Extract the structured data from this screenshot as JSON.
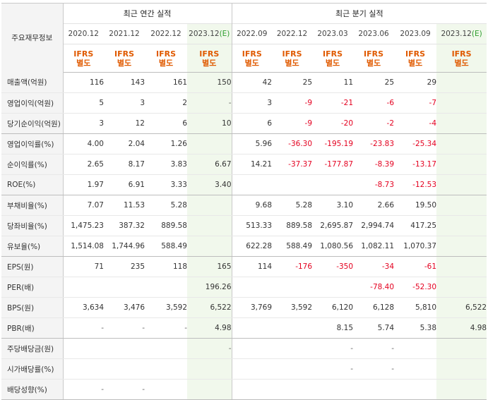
{
  "corner_label": "주요재무정보",
  "groups": {
    "annual": "최근 연간 실적",
    "quarterly": "최근 분기 실적"
  },
  "periods": [
    {
      "label": "2020.12",
      "est": false
    },
    {
      "label": "2021.12",
      "est": false
    },
    {
      "label": "2022.12",
      "est": false
    },
    {
      "label": "2023.12",
      "est": true
    },
    {
      "label": "2022.09",
      "est": false
    },
    {
      "label": "2022.12",
      "est": false
    },
    {
      "label": "2023.03",
      "est": false
    },
    {
      "label": "2023.06",
      "est": false
    },
    {
      "label": "2023.09",
      "est": false
    },
    {
      "label": "2023.12",
      "est": true
    }
  ],
  "est_mark": "(E)",
  "basis": {
    "line1": "IFRS",
    "line2": "별도"
  },
  "rows": [
    {
      "label": "매출액(억원)",
      "values": [
        "116",
        "143",
        "161",
        "150",
        "42",
        "25",
        "11",
        "25",
        "29",
        ""
      ]
    },
    {
      "label": "영업이익(억원)",
      "values": [
        "5",
        "3",
        "2",
        "-",
        "3",
        "-9",
        "-21",
        "-6",
        "-7",
        ""
      ]
    },
    {
      "label": "당기순이익(억원)",
      "values": [
        "3",
        "12",
        "6",
        "10",
        "6",
        "-9",
        "-20",
        "-2",
        "-4",
        ""
      ]
    },
    {
      "label": "영업이익률(%)",
      "values": [
        "4.00",
        "2.04",
        "1.26",
        "",
        "5.96",
        "-36.30",
        "-195.19",
        "-23.83",
        "-25.34",
        ""
      ]
    },
    {
      "label": "순이익률(%)",
      "values": [
        "2.65",
        "8.17",
        "3.83",
        "6.67",
        "14.21",
        "-37.37",
        "-177.87",
        "-8.39",
        "-13.17",
        ""
      ]
    },
    {
      "label": "ROE(%)",
      "values": [
        "1.97",
        "6.91",
        "3.33",
        "3.40",
        "",
        "",
        "",
        "-8.73",
        "-12.53",
        ""
      ]
    },
    {
      "label": "부채비율(%)",
      "values": [
        "7.07",
        "11.53",
        "5.28",
        "",
        "9.68",
        "5.28",
        "3.10",
        "2.66",
        "19.50",
        ""
      ]
    },
    {
      "label": "당좌비율(%)",
      "values": [
        "1,475.23",
        "387.32",
        "889.58",
        "",
        "513.33",
        "889.58",
        "2,695.87",
        "2,994.74",
        "417.25",
        ""
      ]
    },
    {
      "label": "유보율(%)",
      "values": [
        "1,514.08",
        "1,744.96",
        "588.49",
        "",
        "622.28",
        "588.49",
        "1,080.56",
        "1,082.11",
        "1,070.37",
        ""
      ]
    },
    {
      "label": "EPS(원)",
      "values": [
        "71",
        "235",
        "118",
        "165",
        "114",
        "-176",
        "-350",
        "-34",
        "-61",
        ""
      ]
    },
    {
      "label": "PER(배)",
      "values": [
        "",
        "",
        "",
        "196.26",
        "",
        "",
        "",
        "-78.40",
        "-52.30",
        ""
      ]
    },
    {
      "label": "BPS(원)",
      "values": [
        "3,634",
        "3,476",
        "3,592",
        "6,522",
        "3,769",
        "3,592",
        "6,120",
        "6,128",
        "5,810",
        "6,522"
      ]
    },
    {
      "label": "PBR(배)",
      "values": [
        "-",
        "-",
        "-",
        "4.98",
        "",
        "",
        "8.15",
        "5.74",
        "5.38",
        "4.98"
      ]
    },
    {
      "label": "주당배당금(원)",
      "values": [
        "",
        "",
        "",
        "-",
        "",
        "",
        "-",
        "-",
        "",
        ""
      ]
    },
    {
      "label": "시가배당률(%)",
      "values": [
        "",
        "",
        "",
        "",
        "",
        "",
        "-",
        "-",
        "",
        ""
      ]
    },
    {
      "label": "배당성향(%)",
      "values": [
        "-",
        "-",
        "",
        "",
        "",
        "",
        "",
        "",
        "",
        ""
      ]
    }
  ],
  "colors": {
    "negative": "#e4001f",
    "basis": "#e05a00",
    "estimate_bg": "#f1f8ec",
    "estimate_mark": "#2e9e2e"
  }
}
